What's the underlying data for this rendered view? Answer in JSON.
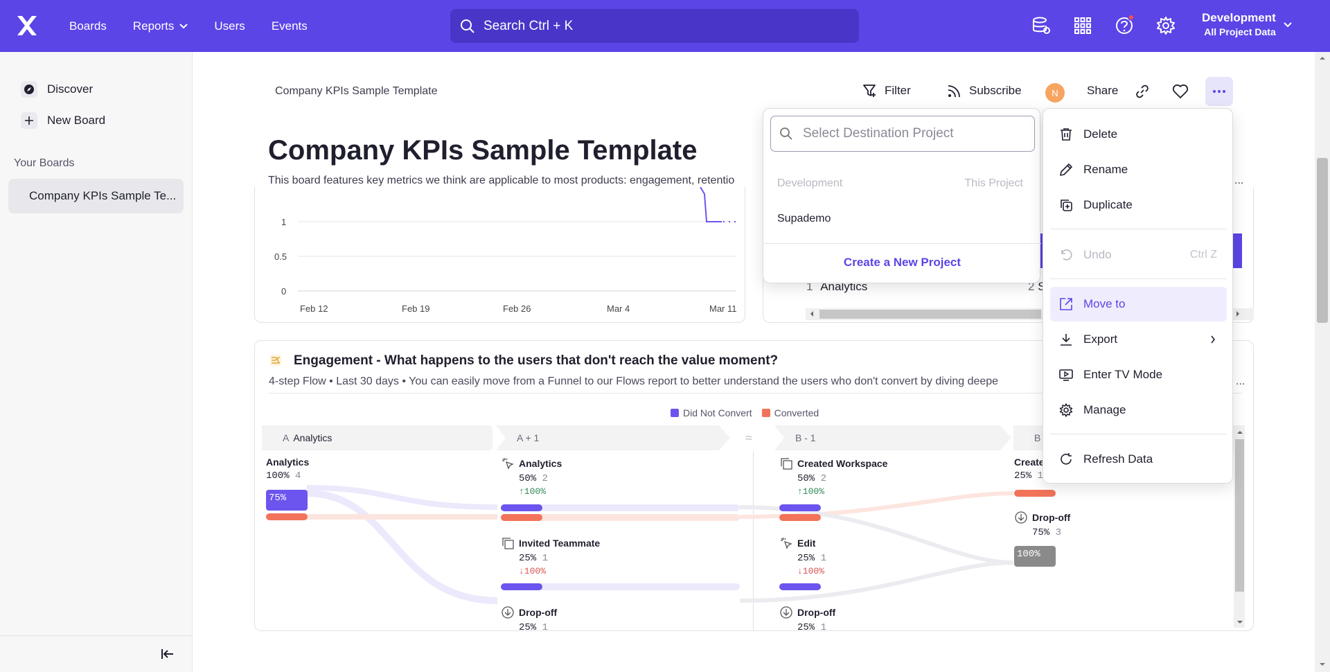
{
  "topbar": {
    "nav": [
      {
        "label": "Boards"
      },
      {
        "label": "Reports"
      },
      {
        "label": "Users"
      },
      {
        "label": "Events"
      }
    ],
    "search_placeholder": "Search  Ctrl + K",
    "project": {
      "name": "Development",
      "scope": "All Project Data"
    },
    "colors": {
      "brand": "#5b45e6"
    }
  },
  "sidebar": {
    "discover": "Discover",
    "new_board": "New Board",
    "your_boards_heading": "Your Boards",
    "boards": [
      "Company KPIs Sample Te..."
    ]
  },
  "header": {
    "breadcrumb": "Company KPIs Sample Template",
    "filter": "Filter",
    "subscribe": "Subscribe",
    "avatar_initial": "N",
    "share": "Share"
  },
  "board": {
    "title": "Company KPIs Sample Template",
    "description": "This board features key metrics we think are applicable to most products: engagement, retentio",
    "description_tail": "..."
  },
  "chart_top_left": {
    "y_ticks": [
      "1",
      "0.5",
      "0"
    ],
    "x_ticks": [
      "Feb 12",
      "Feb 19",
      "Feb 26",
      "Mar 4",
      "Mar 11"
    ]
  },
  "right_card": {
    "row1_index": "1",
    "row1_label": "Analytics",
    "row2_index": "2",
    "row2_label": "S"
  },
  "flows": {
    "title": "Engagement - What happens to the users that don't reach the value moment?",
    "subtitle": "4-step Flow • Last 30 days • You can easily move from a Funnel to our Flows report to better understand the users who don't convert by diving deepe",
    "subtitle_tail": "...",
    "legend": [
      {
        "label": "Did Not Convert",
        "color": "#6b55ee"
      },
      {
        "label": "Converted",
        "color": "#f2735a"
      }
    ],
    "steps": [
      {
        "letter": "A",
        "name": "Analytics"
      },
      {
        "letter": "A + 1",
        "name": ""
      },
      {
        "letter": "B - 1",
        "name": ""
      },
      {
        "letter": "B",
        "name": ""
      }
    ],
    "nodes": {
      "a_analytics": {
        "name": "Analytics",
        "pct": "100%",
        "count": "4",
        "pill": "75%"
      },
      "a1_analytics": {
        "name": "Analytics",
        "pct": "50%",
        "count": "2",
        "change": "↑100%"
      },
      "a1_invited": {
        "name": "Invited Teammate",
        "pct": "25%",
        "count": "1",
        "change": "↓100%"
      },
      "a1_dropoff": {
        "name": "Drop-off",
        "pct": "25%",
        "count": "1"
      },
      "b1_workspace": {
        "name": "Created Workspace",
        "pct": "50%",
        "count": "2",
        "change": "↑100%"
      },
      "b1_edit": {
        "name": "Edit",
        "pct": "25%",
        "count": "1",
        "change": "↓100%"
      },
      "b1_dropoff": {
        "name": "Drop-off",
        "pct": "25%",
        "count": "1"
      },
      "b_created": {
        "name": "Create",
        "pct": "25%",
        "count": "1"
      },
      "b_dropoff": {
        "name": "Drop-off",
        "pct": "75%",
        "count": "3",
        "pill": "100%"
      }
    }
  },
  "move_to": {
    "placeholder": "Select Destination Project",
    "current_project": "Development",
    "current_tag": "This Project",
    "projects": [
      "Supademo"
    ],
    "create": "Create a New Project"
  },
  "menu": {
    "items": [
      {
        "label": "Delete",
        "icon": "trash-icon"
      },
      {
        "label": "Rename",
        "icon": "pencil-icon"
      },
      {
        "label": "Duplicate",
        "icon": "duplicate-icon"
      },
      {
        "label": "Undo",
        "icon": "undo-icon",
        "shortcut": "Ctrl Z",
        "disabled": true
      },
      {
        "label": "Move to",
        "icon": "external-link-icon",
        "active": true
      },
      {
        "label": "Export",
        "icon": "download-icon",
        "submenu": true
      },
      {
        "label": "Enter TV Mode",
        "icon": "tv-icon"
      },
      {
        "label": "Manage",
        "icon": "gear-icon"
      },
      {
        "label": "Refresh Data",
        "icon": "refresh-icon"
      }
    ]
  }
}
